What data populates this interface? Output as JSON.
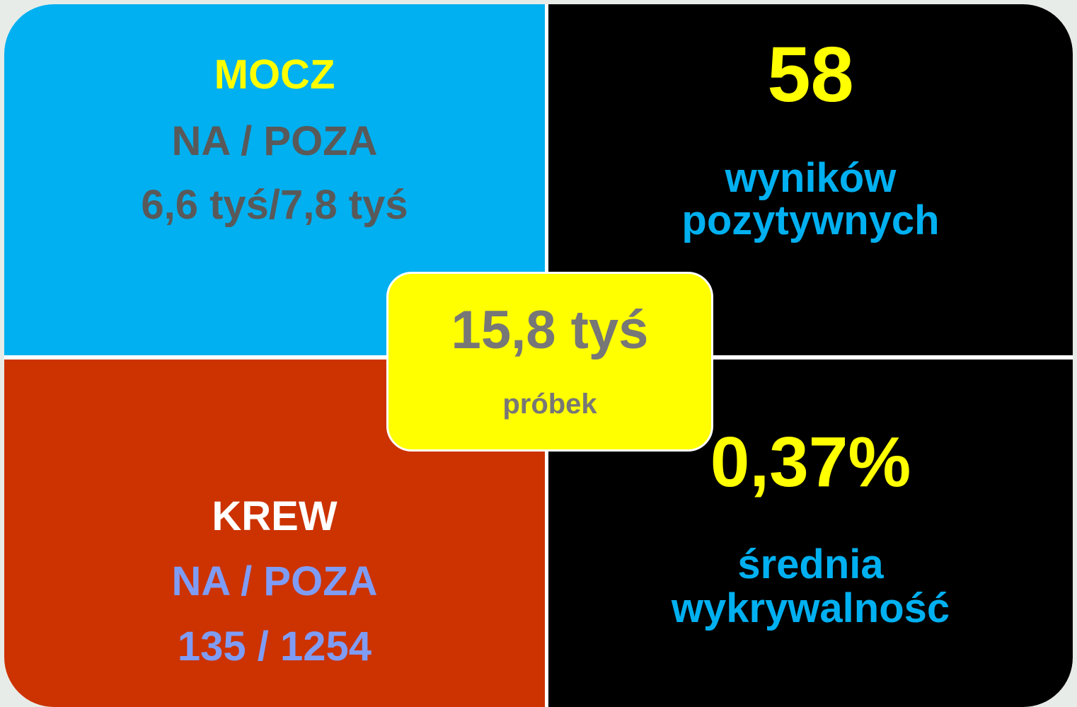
{
  "top_left": {
    "title": "MOCZ",
    "subtitle": "NA / POZA",
    "value": "6,6 tyś/7,8 tyś"
  },
  "top_right": {
    "value": "58",
    "caption_1": "wyników",
    "caption_2": "pozytywnych"
  },
  "bottom_left": {
    "title": "KREW",
    "subtitle": "NA / POZA",
    "value": "135 / 1254"
  },
  "bottom_right": {
    "value": "0,37%",
    "caption_1": "średnia",
    "caption_2": "wykrywalność"
  },
  "center": {
    "value": "15,8 tyś",
    "caption": "próbek"
  }
}
